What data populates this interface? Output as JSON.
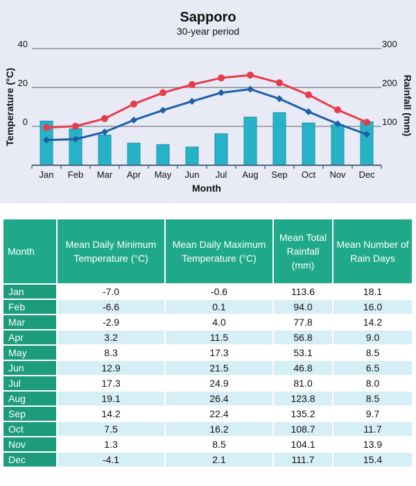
{
  "chart_data": {
    "type": "bar+line",
    "title": "Sapporo",
    "subtitle": "30-year period",
    "xlabel": "Month",
    "ylabel_left": "Temperature (°C)",
    "ylabel_right": "Rainfall (mm)",
    "categories": [
      "Jan",
      "Feb",
      "Mar",
      "Apr",
      "May",
      "Jun",
      "Jul",
      "Aug",
      "Sep",
      "Oct",
      "Nov",
      "Dec"
    ],
    "left_ticks": [
      "40",
      "20",
      "0"
    ],
    "right_ticks": [
      "300",
      "200",
      "100"
    ],
    "ylim_left": [
      -20,
      40
    ],
    "ylim_right": [
      0,
      300
    ],
    "grid": true,
    "series": [
      {
        "kind": "bar",
        "axis": "right",
        "values": [
          113.6,
          94.0,
          77.8,
          56.8,
          53.1,
          46.8,
          81.0,
          123.8,
          135.2,
          108.7,
          104.1,
          111.7
        ]
      },
      {
        "kind": "line",
        "axis": "left",
        "marker": "circle",
        "values": [
          -0.6,
          0.1,
          4.0,
          11.5,
          17.3,
          21.5,
          24.9,
          26.4,
          22.4,
          16.2,
          8.5,
          2.1
        ]
      },
      {
        "kind": "line",
        "axis": "left",
        "marker": "diamond",
        "values": [
          -7.0,
          -6.6,
          -2.9,
          3.2,
          8.3,
          12.9,
          17.3,
          19.1,
          14.2,
          7.5,
          1.3,
          -4.1
        ]
      }
    ],
    "colors": {
      "bar": "#27b3c7",
      "bar_edge": "#1a8fa5",
      "max_line": "#e83b4a",
      "min_line": "#1f5fa8",
      "grid": "#8a8e96",
      "axis": "#4a6a8a"
    }
  },
  "table": {
    "headers": {
      "month": "Month",
      "min_temp": "Mean Daily Minimum Temperature (°C)",
      "max_temp": "Mean Daily Maximum Temperature (°C)",
      "rainfall": "Mean Total Rainfall (mm)",
      "rain_days": "Mean Number of Rain Days"
    },
    "rows": [
      {
        "month": "Jan",
        "min": "-7.0",
        "max": "-0.6",
        "rain": "113.6",
        "days": "18.1"
      },
      {
        "month": "Feb",
        "min": "-6.6",
        "max": "0.1",
        "rain": "94.0",
        "days": "16.0"
      },
      {
        "month": "Mar",
        "min": "-2.9",
        "max": "4.0",
        "rain": "77.8",
        "days": "14.2"
      },
      {
        "month": "Apr",
        "min": "3.2",
        "max": "11.5",
        "rain": "56.8",
        "days": "9.0"
      },
      {
        "month": "May",
        "min": "8.3",
        "max": "17.3",
        "rain": "53.1",
        "days": "8.5"
      },
      {
        "month": "Jun",
        "min": "12.9",
        "max": "21.5",
        "rain": "46.8",
        "days": "6.5"
      },
      {
        "month": "Jul",
        "min": "17.3",
        "max": "24.9",
        "rain": "81.0",
        "days": "8.0"
      },
      {
        "month": "Aug",
        "min": "19.1",
        "max": "26.4",
        "rain": "123.8",
        "days": "8.5"
      },
      {
        "month": "Sep",
        "min": "14.2",
        "max": "22.4",
        "rain": "135.2",
        "days": "9.7"
      },
      {
        "month": "Oct",
        "min": "7.5",
        "max": "16.2",
        "rain": "108.7",
        "days": "11.7"
      },
      {
        "month": "Nov",
        "min": "1.3",
        "max": "8.5",
        "rain": "104.1",
        "days": "13.9"
      },
      {
        "month": "Dec",
        "min": "-4.1",
        "max": "2.1",
        "rain": "111.7",
        "days": "15.4"
      }
    ]
  }
}
